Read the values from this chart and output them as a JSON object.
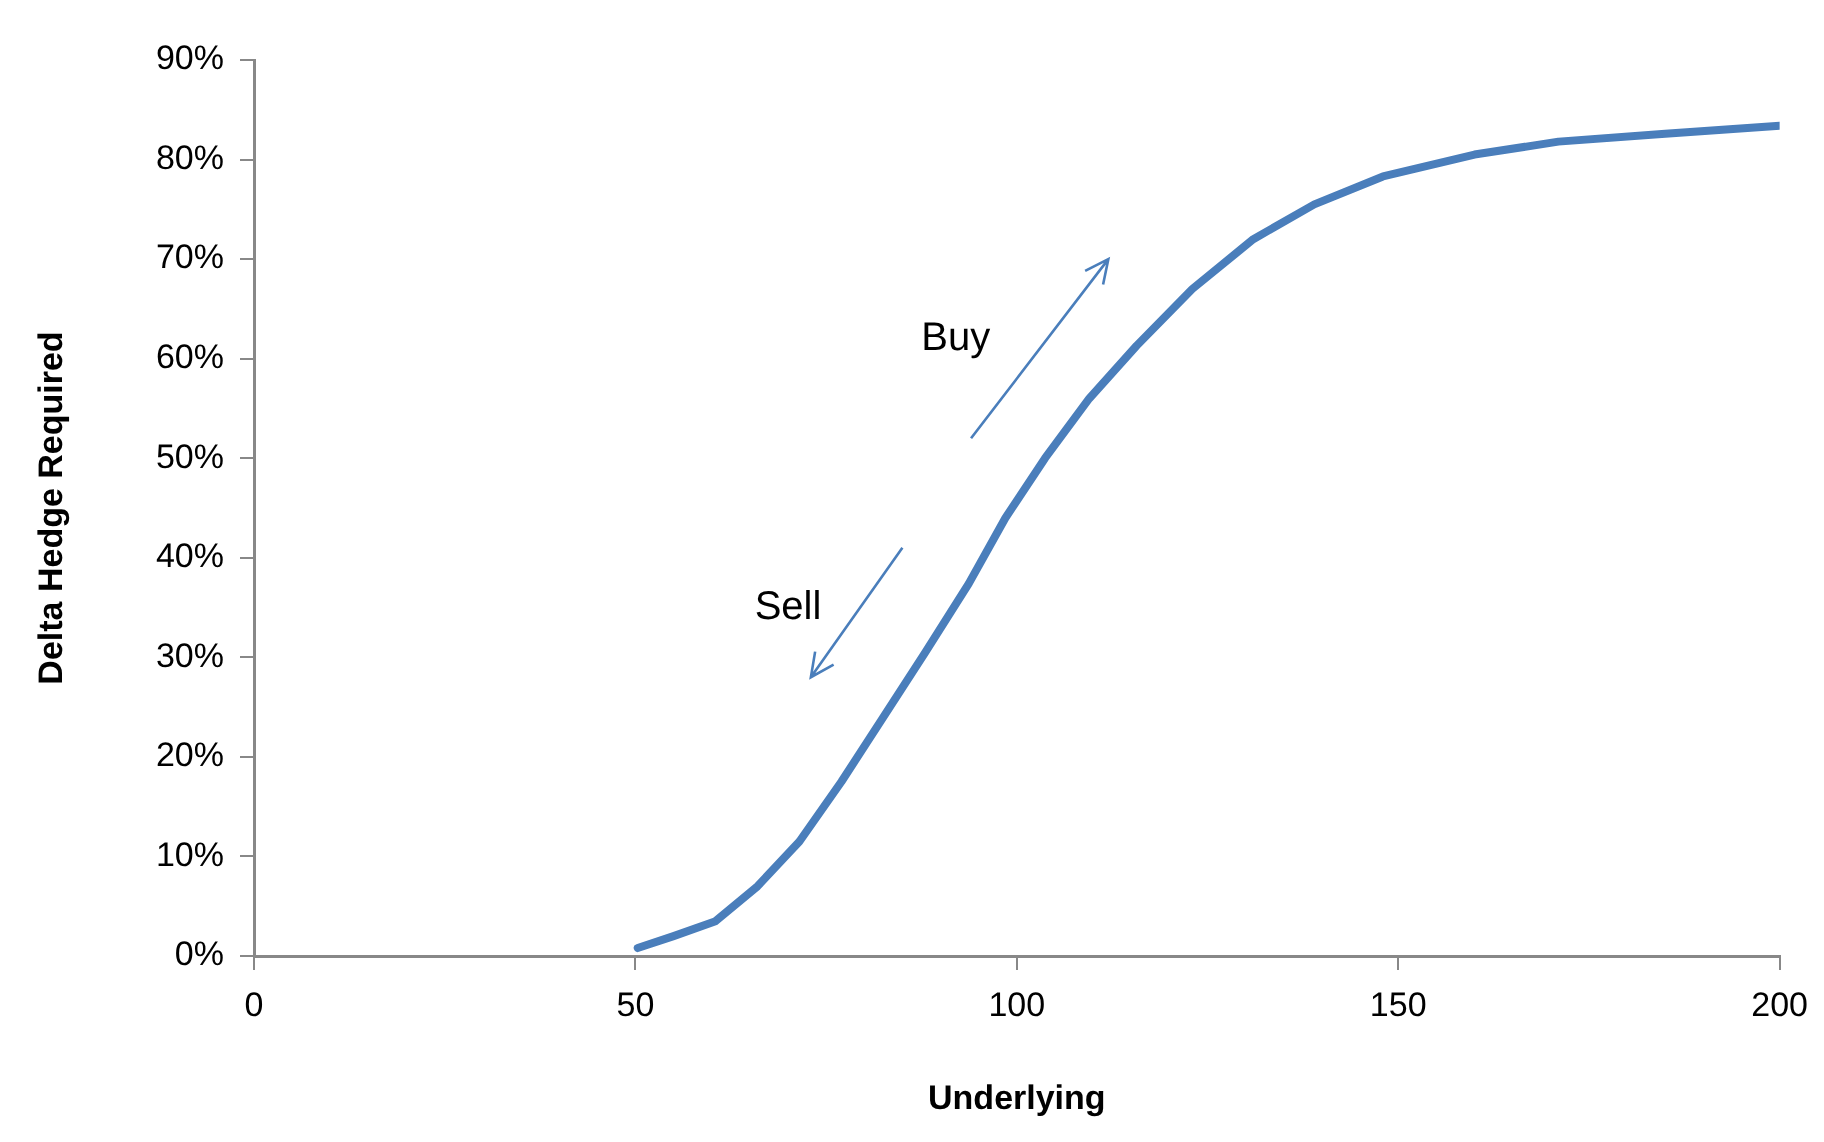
{
  "chart_data": {
    "type": "line",
    "xlabel": "Underlying",
    "ylabel": "Delta Hedge Required",
    "series": [
      {
        "color": "#4a7ebb",
        "x": [
          50.3,
          55,
          60.5,
          66,
          71.5,
          77,
          82.5,
          88,
          93.7,
          98.5,
          103.7,
          109.5,
          115.7,
          123,
          131,
          139,
          148,
          160,
          171,
          185,
          200
        ],
        "values": [
          0.8,
          2,
          3.5,
          7,
          11.5,
          17.5,
          24,
          30.5,
          37.4,
          44,
          50,
          56,
          61.3,
          67,
          72,
          75.5,
          78.3,
          80.5,
          81.8,
          82.6,
          83.4
        ]
      }
    ],
    "xlim": [
      0,
      200
    ],
    "xticks": [
      0,
      50,
      100,
      150,
      200
    ],
    "ylim": [
      0,
      90
    ],
    "yticks": [
      {
        "value": 0,
        "label": "0%"
      },
      {
        "value": 10,
        "label": "10%"
      },
      {
        "value": 20,
        "label": "20%"
      },
      {
        "value": 30,
        "label": "30%"
      },
      {
        "value": 40,
        "label": "40%"
      },
      {
        "value": 50,
        "label": "50%"
      },
      {
        "value": 60,
        "label": "60%"
      },
      {
        "value": 70,
        "label": "70%"
      },
      {
        "value": 80,
        "label": "80%"
      },
      {
        "value": 90,
        "label": "90%"
      }
    ],
    "grid": false,
    "legend": false,
    "marker": "none",
    "line_style": "solid",
    "annotations": [
      "Buy",
      "Sell"
    ]
  }
}
